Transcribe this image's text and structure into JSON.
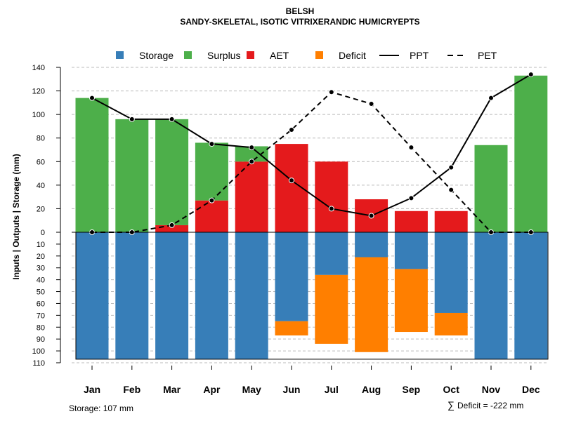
{
  "chart_data": {
    "type": "bar",
    "title": "BELSH",
    "subtitle": "SANDY-SKELETAL, ISOTIC VITRIXERANDIC HUMICRYEPTS",
    "ylabel": "Inputs | Outputs | Storage    (mm)",
    "categories": [
      "Jan",
      "Feb",
      "Mar",
      "Apr",
      "May",
      "Jun",
      "Jul",
      "Aug",
      "Sep",
      "Oct",
      "Nov",
      "Dec"
    ],
    "ylim_top": [
      0,
      140
    ],
    "ylim_bottom": [
      0,
      110
    ],
    "yticks_top": [
      "0",
      "20",
      "40",
      "60",
      "80",
      "100",
      "120",
      "140"
    ],
    "yticks_bottom": [
      "10",
      "20",
      "30",
      "40",
      "50",
      "60",
      "70",
      "80",
      "90",
      "100",
      "110"
    ],
    "storage_capacity": 107,
    "legend": [
      {
        "label": "Storage",
        "kind": "box",
        "color": "#377eb8"
      },
      {
        "label": "Surplus",
        "kind": "box",
        "color": "#4daf4a"
      },
      {
        "label": "AET",
        "kind": "box",
        "color": "#e41a1c"
      },
      {
        "label": "Deficit",
        "kind": "box",
        "color": "#ff7f00"
      },
      {
        "label": "PPT",
        "kind": "solid",
        "color": "#000000"
      },
      {
        "label": "PET",
        "kind": "dashed",
        "color": "#000000"
      }
    ],
    "series": {
      "AET": [
        0,
        0,
        6,
        27,
        60,
        75,
        60,
        28,
        18,
        18,
        0,
        0
      ],
      "Surplus": [
        114,
        96,
        90,
        49,
        13,
        0,
        0,
        0,
        0,
        0,
        74,
        133
      ],
      "Storage": [
        107,
        107,
        107,
        107,
        107,
        75,
        36,
        21,
        31,
        68,
        107,
        107
      ],
      "Deficit": [
        0,
        0,
        0,
        0,
        0,
        12,
        58,
        80,
        53,
        19,
        0,
        0
      ],
      "PPT": [
        114,
        96,
        96,
        75,
        72,
        44,
        20,
        14,
        29,
        55,
        114,
        134
      ],
      "PET": [
        0,
        0,
        6,
        27,
        60,
        87,
        119,
        109,
        72,
        36,
        0,
        0
      ]
    },
    "colors": {
      "Storage": "#377eb8",
      "Surplus": "#4daf4a",
      "AET": "#e41a1c",
      "Deficit": "#ff7f00",
      "PPT": "#000000",
      "PET": "#000000"
    },
    "annotations": {
      "storage_note": "Storage: 107 mm",
      "deficit_symbol": "∑",
      "deficit_note": "Deficit = -222 mm"
    }
  }
}
